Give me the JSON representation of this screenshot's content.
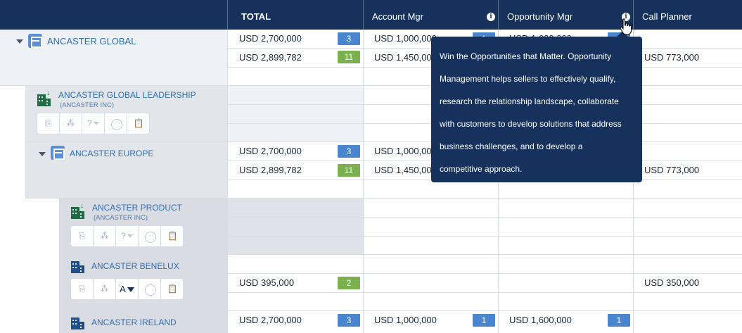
{
  "header": {
    "total": "TOTAL",
    "account_mgr": "Account Mgr",
    "opportunity_mgr": "Opportunity Mgr",
    "call_planner": "Call Planner",
    "info_glyph": "i"
  },
  "tooltip": {
    "lines": [
      "Win the Opportunities that Matter. Opportunity",
      "Management helps sellers to effectively qualify,",
      "research the relationship landscape, collaborate",
      "with customers to develop solutions that address",
      "business challenges, and to develop a",
      "competitive approach."
    ]
  },
  "entities": {
    "ancaster_global": {
      "name": "ANCASTER GLOBAL"
    },
    "global_leadership": {
      "name": "ANCASTER GLOBAL LEADERSHIP",
      "sub": "(ANCASTER INC)"
    },
    "ancaster_europe": {
      "name": "ANCASTER EUROPE"
    },
    "ancaster_product": {
      "name": "ANCASTER PRODUCT",
      "sub": "(ANCASTER INC)"
    },
    "ancaster_benelux": {
      "name": "ANCASTER BENELUX",
      "selected_value": "A"
    },
    "ancaster_ireland": {
      "name": "ANCASTER IRELAND"
    }
  },
  "actions": {
    "unknown_value": "?"
  },
  "rows": {
    "global_1": {
      "total": "USD 2,700,000",
      "total_count": "3",
      "account": "USD 1,000,000",
      "account_count": "1",
      "opportunity": "USD 1,600,000"
    },
    "global_2": {
      "total": "USD 2,899,782",
      "total_count": "11",
      "account": "USD 1,450,000",
      "call_planner": "USD 773,000"
    },
    "europe_1": {
      "total": "USD 2,700,000",
      "total_count": "3",
      "account": "USD 1,000,000"
    },
    "europe_2": {
      "total": "USD 2,899,782",
      "total_count": "11",
      "account": "USD 1,450,000",
      "call_planner": "USD 773,000"
    },
    "benelux_1": {
      "total": "USD 395,000",
      "total_count": "2",
      "call_planner": "USD 350,000"
    },
    "ireland_1": {
      "total": "USD 2,700,000",
      "total_count": "3",
      "account": "USD 1,000,000",
      "account_count": "1",
      "opportunity": "USD 1,600,000",
      "opportunity_count": "1"
    }
  }
}
